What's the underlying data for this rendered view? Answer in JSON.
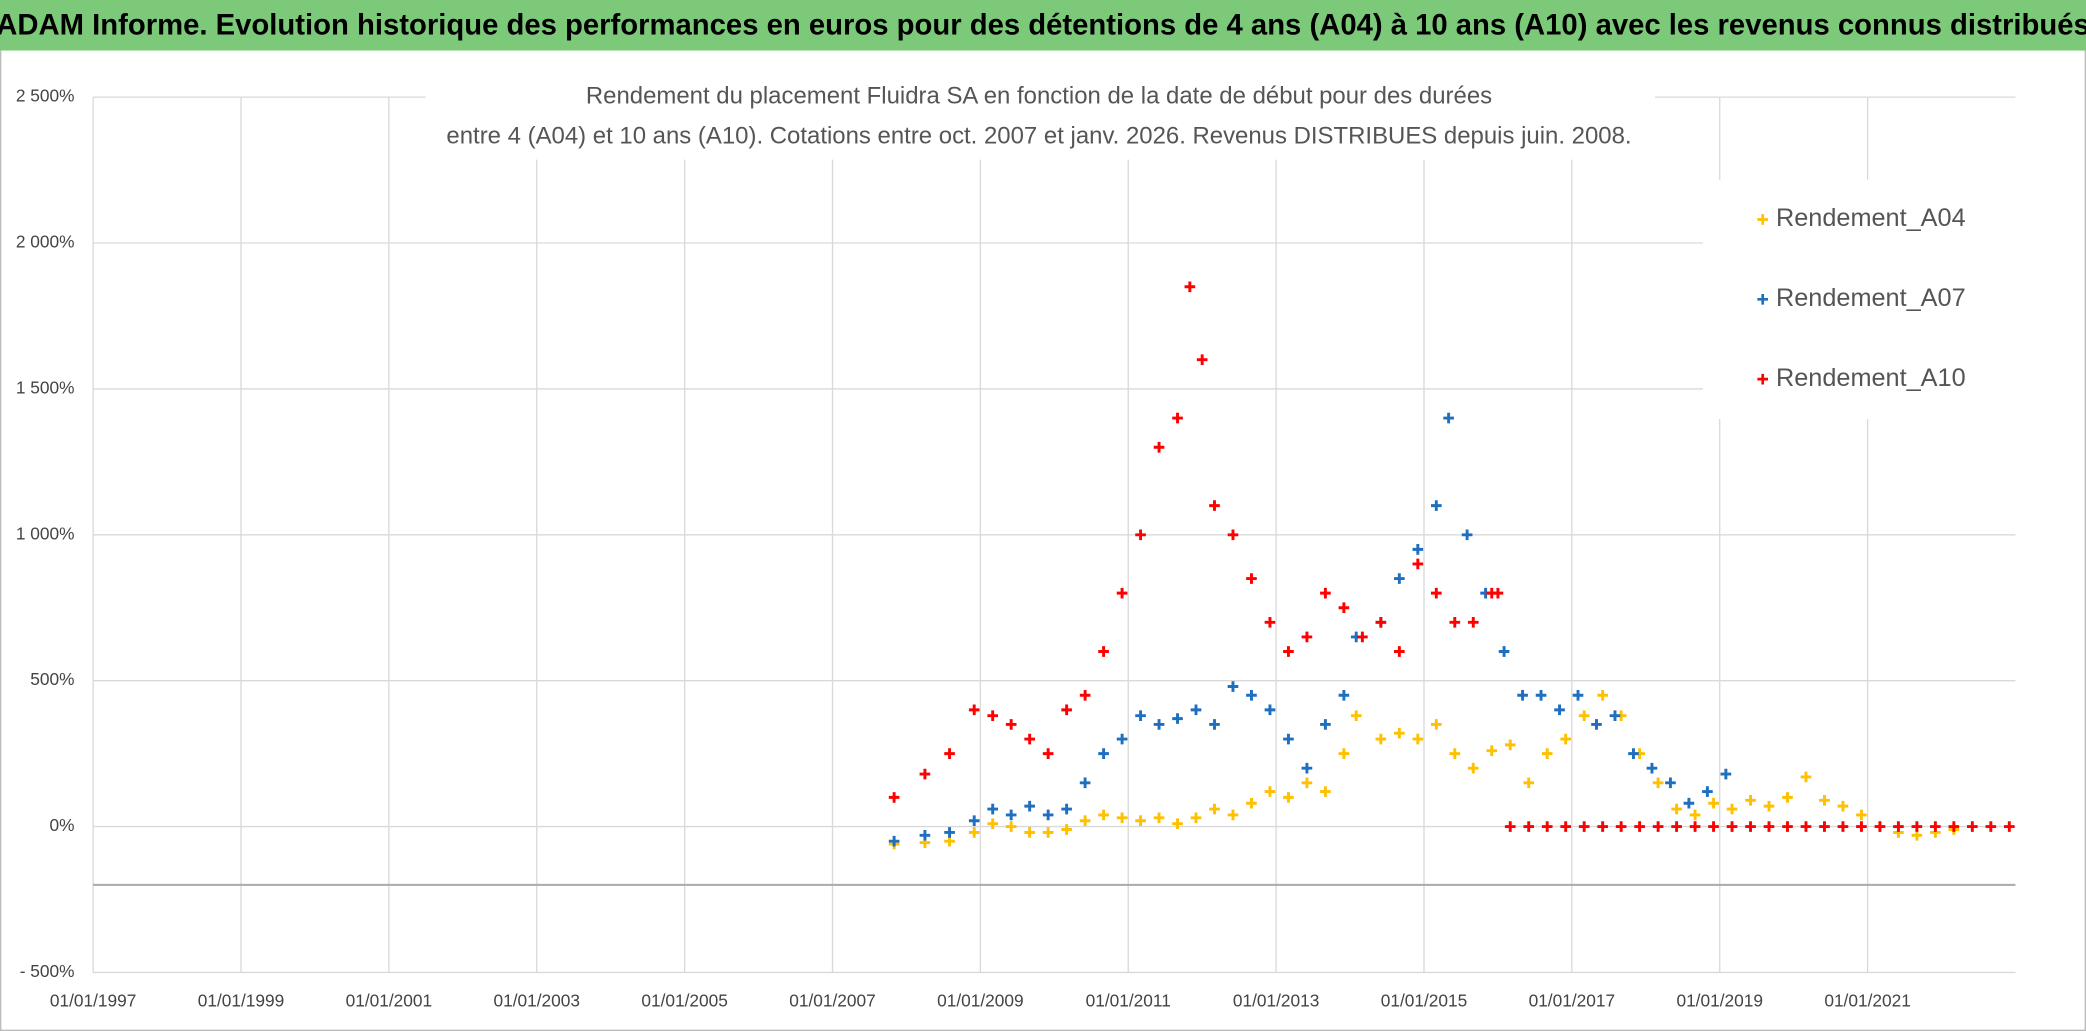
{
  "header": {
    "title": "ADAM Informe. Evolution historique des performances en euros pour des détentions de 4 ans (A04) à 10 ans (A10) avec les revenus connus distribués"
  },
  "chart_data": {
    "type": "scatter",
    "title_lines": [
      "Rendement du placement Fluidra SA en fonction de la date de début pour des durées",
      "entre 4 (A04) et 10 ans (A10). Cotations entre oct. 2007 et janv. 2026. Revenus DISTRIBUES depuis juin. 2008."
    ],
    "xlim": [
      "1997-01-01",
      "2023-01-01"
    ],
    "xticks": [
      {
        "value": "1997-01-01",
        "label": "01/01/1997"
      },
      {
        "value": "1999-01-01",
        "label": "01/01/1999"
      },
      {
        "value": "2001-01-01",
        "label": "01/01/2001"
      },
      {
        "value": "2003-01-01",
        "label": "01/01/2003"
      },
      {
        "value": "2005-01-01",
        "label": "01/01/2005"
      },
      {
        "value": "2007-01-01",
        "label": "01/01/2007"
      },
      {
        "value": "2009-01-01",
        "label": "01/01/2009"
      },
      {
        "value": "2011-01-01",
        "label": "01/01/2011"
      },
      {
        "value": "2013-01-01",
        "label": "01/01/2013"
      },
      {
        "value": "2015-01-01",
        "label": "01/01/2015"
      },
      {
        "value": "2017-01-01",
        "label": "01/01/2017"
      },
      {
        "value": "2019-01-01",
        "label": "01/01/2019"
      },
      {
        "value": "2021-01-01",
        "label": "01/01/2021"
      }
    ],
    "ylim": [
      -500,
      2500
    ],
    "yticks": [
      {
        "value": -500,
        "label": "- 500%"
      },
      {
        "value": 0,
        "label": "0%"
      },
      {
        "value": 500,
        "label": "500%"
      },
      {
        "value": 1000,
        "label": "1 000%"
      },
      {
        "value": 1500,
        "label": "1 500%"
      },
      {
        "value": 2000,
        "label": "2 000%"
      },
      {
        "value": 2500,
        "label": "2 500%"
      }
    ],
    "x_axis_at": -200,
    "grid": true,
    "legend": "top-right",
    "series": [
      {
        "name": "Rendement_A04",
        "color": "#ffc000",
        "x": [
          "2007-11",
          "2008-04",
          "2008-08",
          "2008-12",
          "2009-03",
          "2009-06",
          "2009-09",
          "2009-12",
          "2010-03",
          "2010-06",
          "2010-09",
          "2010-12",
          "2011-03",
          "2011-06",
          "2011-09",
          "2011-12",
          "2012-03",
          "2012-06",
          "2012-09",
          "2012-12",
          "2013-03",
          "2013-06",
          "2013-09",
          "2013-12",
          "2014-02",
          "2014-06",
          "2014-09",
          "2014-12",
          "2015-03",
          "2015-06",
          "2015-09",
          "2015-12",
          "2016-03",
          "2016-06",
          "2016-09",
          "2016-12",
          "2017-03",
          "2017-06",
          "2017-09",
          "2017-12",
          "2018-03",
          "2018-06",
          "2018-09",
          "2018-12",
          "2019-03",
          "2019-06",
          "2019-09",
          "2019-12",
          "2020-03",
          "2020-06",
          "2020-09",
          "2020-12",
          "2021-03",
          "2021-06",
          "2021-09",
          "2021-12",
          "2022-03"
        ],
        "values": [
          -60,
          -55,
          -50,
          -20,
          10,
          0,
          -20,
          -20,
          -10,
          20,
          40,
          30,
          20,
          30,
          10,
          30,
          60,
          40,
          80,
          120,
          100,
          150,
          120,
          250,
          380,
          300,
          320,
          300,
          350,
          250,
          200,
          260,
          280,
          150,
          250,
          300,
          380,
          450,
          380,
          250,
          150,
          60,
          40,
          80,
          60,
          90,
          70,
          100,
          170,
          90,
          70,
          40,
          0,
          -20,
          -30,
          -20,
          -10
        ]
      },
      {
        "name": "Rendement_A07",
        "color": "#1f6fbf",
        "x": [
          "2007-11",
          "2008-04",
          "2008-08",
          "2008-12",
          "2009-03",
          "2009-06",
          "2009-09",
          "2009-12",
          "2010-03",
          "2010-06",
          "2010-09",
          "2010-12",
          "2011-03",
          "2011-06",
          "2011-09",
          "2011-12",
          "2012-03",
          "2012-06",
          "2012-09",
          "2012-12",
          "2013-03",
          "2013-06",
          "2013-09",
          "2013-12",
          "2014-02",
          "2014-06",
          "2014-09",
          "2014-12",
          "2015-03",
          "2015-05",
          "2015-08",
          "2015-11",
          "2016-02",
          "2016-05",
          "2016-08",
          "2016-11",
          "2017-02",
          "2017-05",
          "2017-08",
          "2017-11",
          "2018-02",
          "2018-05",
          "2018-08",
          "2018-11",
          "2019-02"
        ],
        "values": [
          -50,
          -30,
          -20,
          20,
          60,
          40,
          70,
          40,
          60,
          150,
          250,
          300,
          380,
          350,
          370,
          400,
          350,
          480,
          450,
          400,
          300,
          200,
          350,
          450,
          650,
          700,
          850,
          950,
          1100,
          1400,
          1000,
          800,
          600,
          450,
          450,
          400,
          450,
          350,
          380,
          250,
          200,
          150,
          80,
          120,
          180
        ]
      },
      {
        "name": "Rendement_A10",
        "color": "#ff0000",
        "x": [
          "2007-11",
          "2008-04",
          "2008-08",
          "2008-12",
          "2009-03",
          "2009-06",
          "2009-09",
          "2009-12",
          "2010-03",
          "2010-06",
          "2010-09",
          "2010-12",
          "2011-03",
          "2011-06",
          "2011-09",
          "2011-11",
          "2012-01",
          "2012-03",
          "2012-06",
          "2012-09",
          "2012-12",
          "2013-03",
          "2013-06",
          "2013-09",
          "2013-12",
          "2014-03",
          "2014-06",
          "2014-09",
          "2014-12",
          "2015-03",
          "2015-06",
          "2015-09",
          "2015-12",
          "2016-01",
          "2016-03",
          "2016-06",
          "2016-09",
          "2016-12",
          "2017-03",
          "2017-06",
          "2017-09",
          "2017-12",
          "2018-03",
          "2018-06",
          "2018-09",
          "2018-12",
          "2019-03",
          "2019-06",
          "2019-09",
          "2019-12",
          "2020-03",
          "2020-06",
          "2020-09",
          "2020-12",
          "2021-03",
          "2021-06",
          "2021-09",
          "2021-12",
          "2022-03",
          "2022-06",
          "2022-09",
          "2022-12"
        ],
        "values": [
          100,
          180,
          250,
          400,
          380,
          350,
          300,
          250,
          400,
          450,
          600,
          800,
          1000,
          1300,
          1400,
          1850,
          1600,
          1100,
          1000,
          850,
          700,
          600,
          650,
          800,
          750,
          650,
          700,
          600,
          900,
          800,
          700,
          700,
          800,
          800,
          0,
          0,
          0,
          0,
          0,
          0,
          0,
          0,
          0,
          0,
          0,
          0,
          0,
          0,
          0,
          0,
          0,
          0,
          0,
          0,
          0,
          0,
          0,
          0,
          0,
          0,
          0,
          0
        ]
      }
    ]
  }
}
